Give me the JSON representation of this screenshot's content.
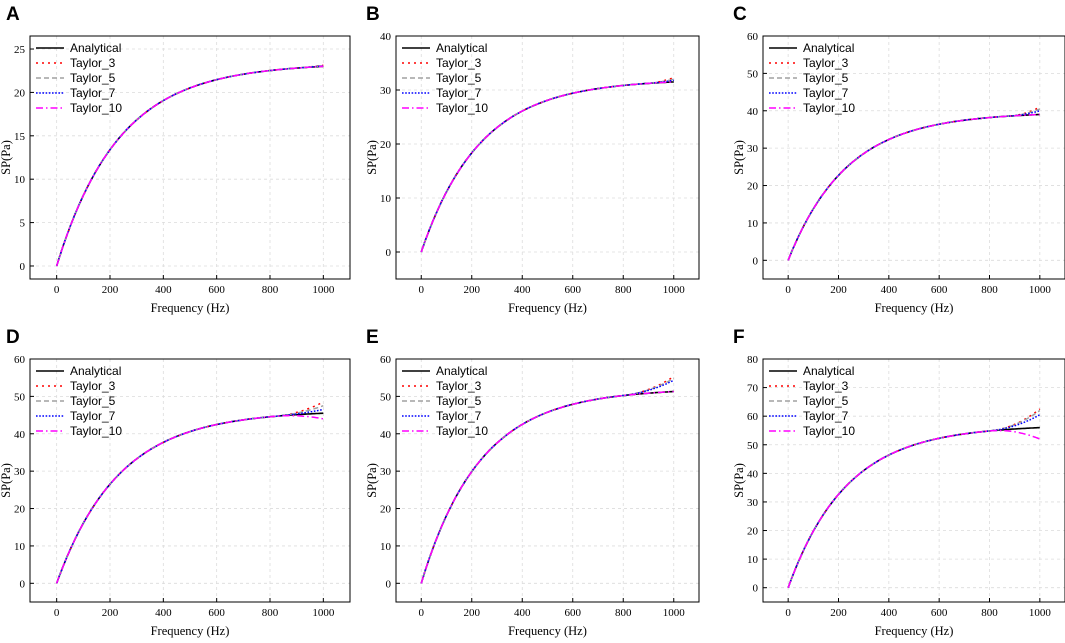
{
  "figure": {
    "xlabel": "Frequency (Hz)",
    "ylabel": "SP(Pa)",
    "legend": [
      "Analytical",
      "Taylor_3",
      "Taylor_5",
      "Taylor_7",
      "Taylor_10"
    ],
    "series_styles": [
      {
        "name": "Analytical",
        "color": "#000000",
        "dash": "solid"
      },
      {
        "name": "Taylor_3",
        "color": "#ff0000",
        "dash": "dot"
      },
      {
        "name": "Taylor_5",
        "color": "#a0a0a0",
        "dash": "dash"
      },
      {
        "name": "Taylor_7",
        "color": "#0000ff",
        "dash": "short-dot"
      },
      {
        "name": "Taylor_10",
        "color": "#ff00ff",
        "dash": "dash-dot"
      }
    ]
  },
  "chart_data": [
    {
      "panel": "A",
      "type": "line",
      "xlabel": "Frequency (Hz)",
      "ylabel": "SP(Pa)",
      "xlim": [
        -100,
        1100
      ],
      "ylim": [
        -1.5,
        26.5
      ],
      "xticks": [
        0,
        200,
        400,
        600,
        800,
        1000
      ],
      "yticks": [
        0,
        5,
        10,
        15,
        20,
        25
      ],
      "legend_position": "top-left",
      "final_value": 23.0,
      "deviation_end": {
        "Taylor_3": 0.15,
        "Taylor_5": 0.1,
        "Taylor_7": 0.05,
        "Taylor_10": 0.0
      },
      "deviation_start": 900
    },
    {
      "panel": "B",
      "type": "line",
      "xlabel": "Frequency (Hz)",
      "ylabel": "SP(Pa)",
      "xlim": [
        -100,
        1100
      ],
      "ylim": [
        -5,
        40
      ],
      "xticks": [
        0,
        200,
        400,
        600,
        800,
        1000
      ],
      "yticks": [
        0,
        10,
        20,
        30,
        40
      ],
      "legend_position": "top-left",
      "final_value": 31.5,
      "deviation_end": {
        "Taylor_3": 0.8,
        "Taylor_5": 0.5,
        "Taylor_7": 0.3,
        "Taylor_10": 0.0
      },
      "deviation_start": 890
    },
    {
      "panel": "C",
      "type": "line",
      "xlabel": "Frequency (Hz)",
      "ylabel": "SP(Pa)",
      "xlim": [
        -100,
        1100
      ],
      "ylim": [
        -5,
        60
      ],
      "xticks": [
        0,
        200,
        400,
        600,
        800,
        1000
      ],
      "yticks": [
        0,
        10,
        20,
        30,
        40,
        50,
        60
      ],
      "legend_position": "top-left",
      "final_value": 39.0,
      "deviation_end": {
        "Taylor_3": 2.0,
        "Taylor_5": 1.5,
        "Taylor_7": 1.0,
        "Taylor_10": 0.0
      },
      "deviation_start": 880
    },
    {
      "panel": "D",
      "type": "line",
      "xlabel": "Frequency (Hz)",
      "ylabel": "SP(Pa)",
      "xlim": [
        -100,
        1100
      ],
      "ylim": [
        -5,
        60
      ],
      "xticks": [
        0,
        200,
        400,
        600,
        800,
        1000
      ],
      "yticks": [
        0,
        10,
        20,
        30,
        40,
        50,
        60
      ],
      "legend_position": "top-left",
      "final_value": 45.5,
      "deviation_end": {
        "Taylor_3": 3.0,
        "Taylor_5": 2.0,
        "Taylor_7": 1.0,
        "Taylor_10": -1.5
      },
      "deviation_start": 820
    },
    {
      "panel": "E",
      "type": "line",
      "xlabel": "Frequency (Hz)",
      "ylabel": "SP(Pa)",
      "xlim": [
        -100,
        1100
      ],
      "ylim": [
        -5,
        60
      ],
      "xticks": [
        0,
        200,
        400,
        600,
        800,
        1000
      ],
      "yticks": [
        0,
        10,
        20,
        30,
        40,
        50,
        60
      ],
      "legend_position": "top-left",
      "final_value": 51.3,
      "deviation_end": {
        "Taylor_3": 4.0,
        "Taylor_5": 3.5,
        "Taylor_7": 3.0,
        "Taylor_10": 0.0
      },
      "deviation_start": 800
    },
    {
      "panel": "F",
      "type": "line",
      "xlabel": "Frequency (Hz)",
      "ylabel": "SP(Pa)",
      "xlim": [
        -100,
        1100
      ],
      "ylim": [
        -5,
        80
      ],
      "xticks": [
        0,
        200,
        400,
        600,
        800,
        1000
      ],
      "yticks": [
        0,
        10,
        20,
        30,
        40,
        50,
        60,
        70,
        80
      ],
      "legend_position": "top-left",
      "final_value": 56.0,
      "deviation_end": {
        "Taylor_3": 6.5,
        "Taylor_5": 6.0,
        "Taylor_7": 4.5,
        "Taylor_10": -4.0
      },
      "deviation_start": 800
    }
  ]
}
